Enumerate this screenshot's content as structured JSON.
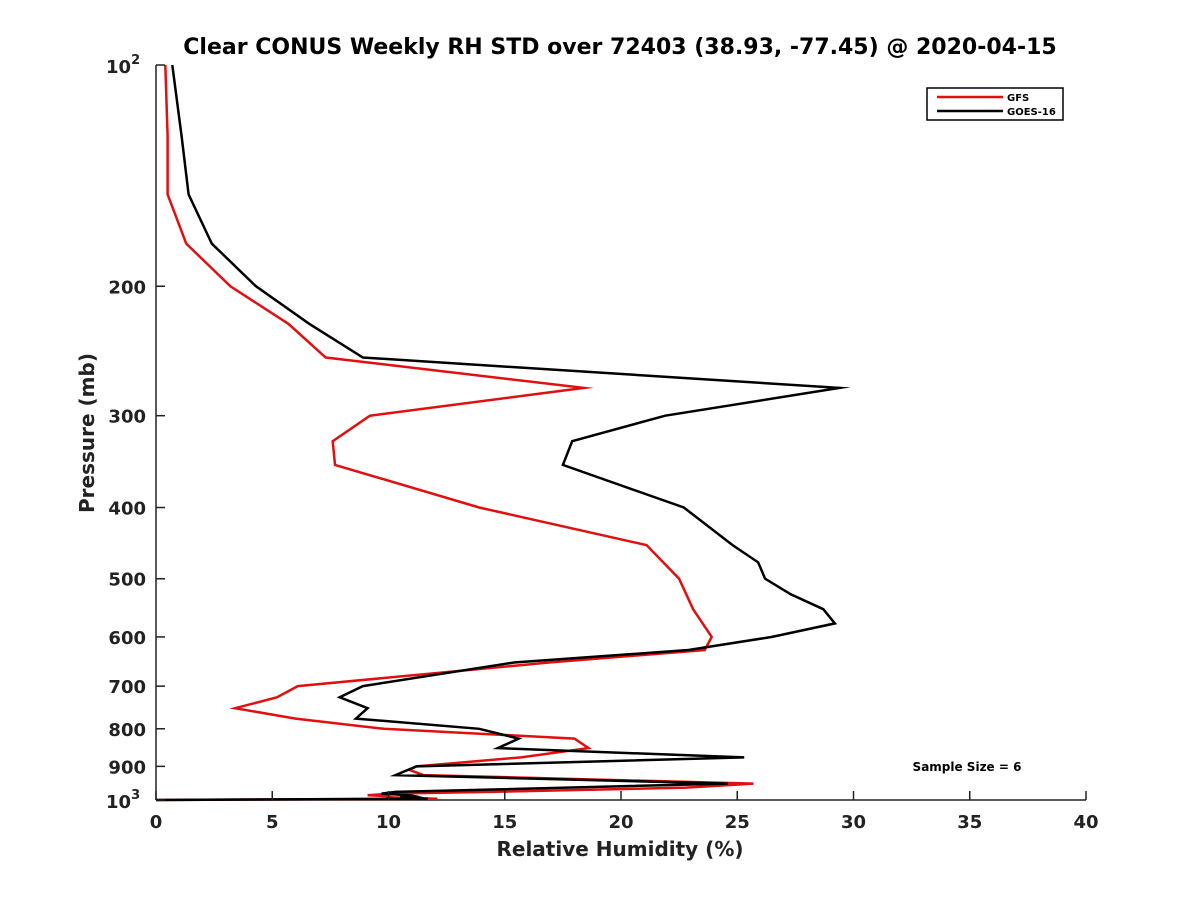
{
  "chart_data": {
    "type": "line",
    "title": "Clear CONUS Weekly RH STD over 72403 (38.93, -77.45) @ 2020-04-15",
    "xlabel": "Relative Humidity (%)",
    "ylabel": "Pressure (mb)",
    "xlim": [
      0,
      40
    ],
    "ylim": [
      100,
      1000
    ],
    "y_scale": "log",
    "y_reversed": true,
    "grid": false,
    "legend_position": "top-right",
    "x_ticks": [
      0,
      5,
      10,
      15,
      20,
      25,
      30,
      35,
      40
    ],
    "y_ticks": [
      {
        "value": 100,
        "base": "10",
        "exp": "2"
      },
      {
        "value": 200,
        "label": "200"
      },
      {
        "value": 300,
        "label": "300"
      },
      {
        "value": 400,
        "label": "400"
      },
      {
        "value": 500,
        "label": "500"
      },
      {
        "value": 600,
        "label": "600"
      },
      {
        "value": 700,
        "label": "700"
      },
      {
        "value": 800,
        "label": "800"
      },
      {
        "value": 900,
        "label": "900"
      },
      {
        "value": 1000,
        "base": "10",
        "exp": "3"
      }
    ],
    "annotation": "Sample Size = 6",
    "series": [
      {
        "name": "GFS",
        "color": "#e01010",
        "points": [
          [
            0.4,
            100
          ],
          [
            0.5,
            125
          ],
          [
            0.5,
            150
          ],
          [
            1.3,
            175
          ],
          [
            3.2,
            200
          ],
          [
            5.7,
            225
          ],
          [
            7.3,
            250
          ],
          [
            18.4,
            275
          ],
          [
            9.2,
            300
          ],
          [
            7.6,
            325
          ],
          [
            7.7,
            350
          ],
          [
            13.9,
            400
          ],
          [
            21.1,
            450
          ],
          [
            22.5,
            500
          ],
          [
            23.1,
            550
          ],
          [
            23.9,
            600
          ],
          [
            23.6,
            625
          ],
          [
            16.9,
            650
          ],
          [
            6.1,
            700
          ],
          [
            5.2,
            725
          ],
          [
            3.4,
            750
          ],
          [
            6.0,
            775
          ],
          [
            9.8,
            800
          ],
          [
            18.0,
            825
          ],
          [
            18.6,
            850
          ],
          [
            15.7,
            875
          ],
          [
            11.2,
            900
          ],
          [
            10.9,
            910
          ],
          [
            11.5,
            925
          ],
          [
            25.7,
            950
          ],
          [
            22.8,
            962
          ],
          [
            14.3,
            975
          ],
          [
            10.2,
            980
          ],
          [
            9.1,
            985
          ],
          [
            9.9,
            988
          ],
          [
            10.0,
            990
          ],
          [
            10.2,
            992
          ],
          [
            11.2,
            994
          ],
          [
            12.1,
            996
          ],
          [
            0,
            1000
          ]
        ]
      },
      {
        "name": "GOES-16",
        "color": "#000000",
        "points": [
          [
            0.7,
            100
          ],
          [
            1.1,
            125
          ],
          [
            1.4,
            150
          ],
          [
            2.4,
            175
          ],
          [
            4.3,
            200
          ],
          [
            6.6,
            225
          ],
          [
            8.9,
            250
          ],
          [
            29.4,
            275
          ],
          [
            21.9,
            300
          ],
          [
            17.9,
            325
          ],
          [
            17.5,
            350
          ],
          [
            22.7,
            400
          ],
          [
            24.8,
            450
          ],
          [
            25.9,
            475
          ],
          [
            26.2,
            500
          ],
          [
            27.3,
            525
          ],
          [
            28.7,
            550
          ],
          [
            29.2,
            575
          ],
          [
            26.5,
            600
          ],
          [
            22.9,
            625
          ],
          [
            15.4,
            650
          ],
          [
            8.9,
            700
          ],
          [
            7.9,
            725
          ],
          [
            9.1,
            750
          ],
          [
            8.6,
            775
          ],
          [
            13.9,
            800
          ],
          [
            15.6,
            825
          ],
          [
            14.7,
            850
          ],
          [
            25.3,
            875
          ],
          [
            11.2,
            900
          ],
          [
            10.3,
            925
          ],
          [
            24.6,
            950
          ],
          [
            10.3,
            975
          ],
          [
            9.7,
            980
          ],
          [
            10.9,
            985
          ],
          [
            11.1,
            988
          ],
          [
            10.8,
            990
          ],
          [
            10.5,
            992
          ],
          [
            11.2,
            994
          ],
          [
            11.7,
            996
          ],
          [
            0,
            1000
          ]
        ]
      }
    ]
  }
}
